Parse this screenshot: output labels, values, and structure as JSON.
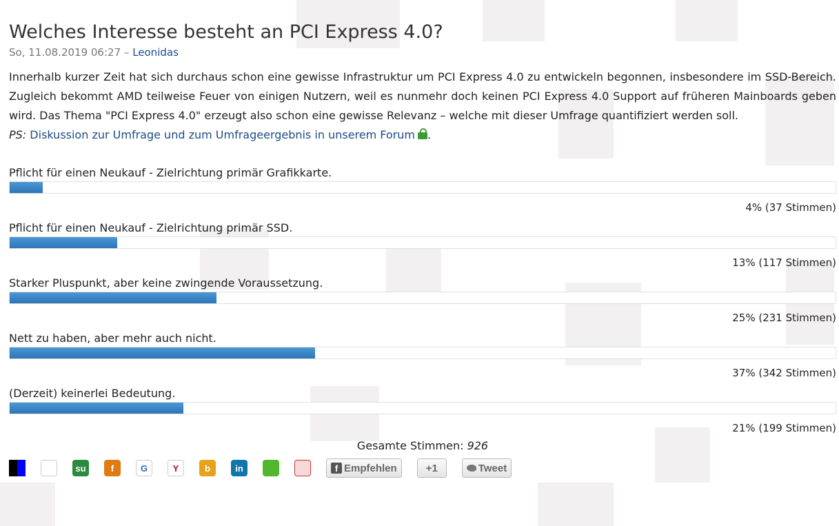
{
  "article": {
    "title": "Welches Interesse besteht an PCI Express 4.0?",
    "date": "So, 11.08.2019 06:27",
    "separator": "–",
    "author": "Leonidas",
    "intro": "Innerhalb kurzer Zeit hat sich durchaus schon eine gewisse Infrastruktur um PCI Express 4.0 zu entwickeln begonnen, insbesondere im SSD-Bereich. Zugleich bekommt AMD teilweise Feuer von einigen Nutzern, weil es nunmehr doch keinen PCI Express 4.0 Support auf früheren Mainboards geben wird. Das Thema \"PCI Express 4.0\" erzeugt also schon eine gewisse Relevanz – welche mit dieser Umfrage quantifiziert werden soll.",
    "ps_label": "PS:",
    "ps_link": "Diskussion zur Umfrage und zum Umfrageergebnis in unserem Forum",
    "ps_end": "."
  },
  "poll": {
    "options": [
      {
        "label": "Pflicht für einen Neukauf - Zielrichtung primär Grafikkarte.",
        "percent": 4,
        "result": "4% (37 Stimmen)"
      },
      {
        "label": "Pflicht für einen Neukauf - Zielrichtung primär SSD.",
        "percent": 13,
        "result": "13% (117 Stimmen)"
      },
      {
        "label": "Starker Pluspunkt, aber keine zwingende Voraussetzung.",
        "percent": 25,
        "result": "25% (231 Stimmen)"
      },
      {
        "label": "Nett zu haben, aber mehr auch nicht.",
        "percent": 37,
        "result": "37% (342 Stimmen)"
      },
      {
        "label": "(Derzeit) keinerlei Bedeutung.",
        "percent": 21,
        "result": "21% (199 Stimmen)"
      }
    ],
    "total_label": "Gesamte Stimmen:",
    "total_value": "926",
    "bar_color": "#3a86c8"
  },
  "share": {
    "icons": [
      {
        "name": "delicious-icon",
        "glyph": "",
        "color": "#ffffff"
      },
      {
        "name": "digg-icon",
        "glyph": "",
        "color": "#ffffff"
      },
      {
        "name": "stumbleupon-icon",
        "glyph": "su",
        "color": "#2b8a3e"
      },
      {
        "name": "folkd-icon",
        "glyph": "f",
        "color": "#e07b12"
      },
      {
        "name": "google-bookmarks-icon",
        "glyph": "G",
        "color": "#ffffff"
      },
      {
        "name": "yahoo-bookmarks-icon",
        "glyph": "Y",
        "color": "#ffffff"
      },
      {
        "name": "bloglines-icon",
        "glyph": "b",
        "color": "#e8a21a"
      },
      {
        "name": "linkedin-icon",
        "glyph": "in",
        "color": "#0e76a8"
      },
      {
        "name": "netvibes-icon",
        "glyph": "",
        "color": "#4fb82c"
      },
      {
        "name": "mister-wong-icon",
        "glyph": "",
        "color": "#ffffff"
      }
    ],
    "facebook_label": "Empfehlen",
    "gplus_label": "+1",
    "tweet_label": "Tweet"
  }
}
